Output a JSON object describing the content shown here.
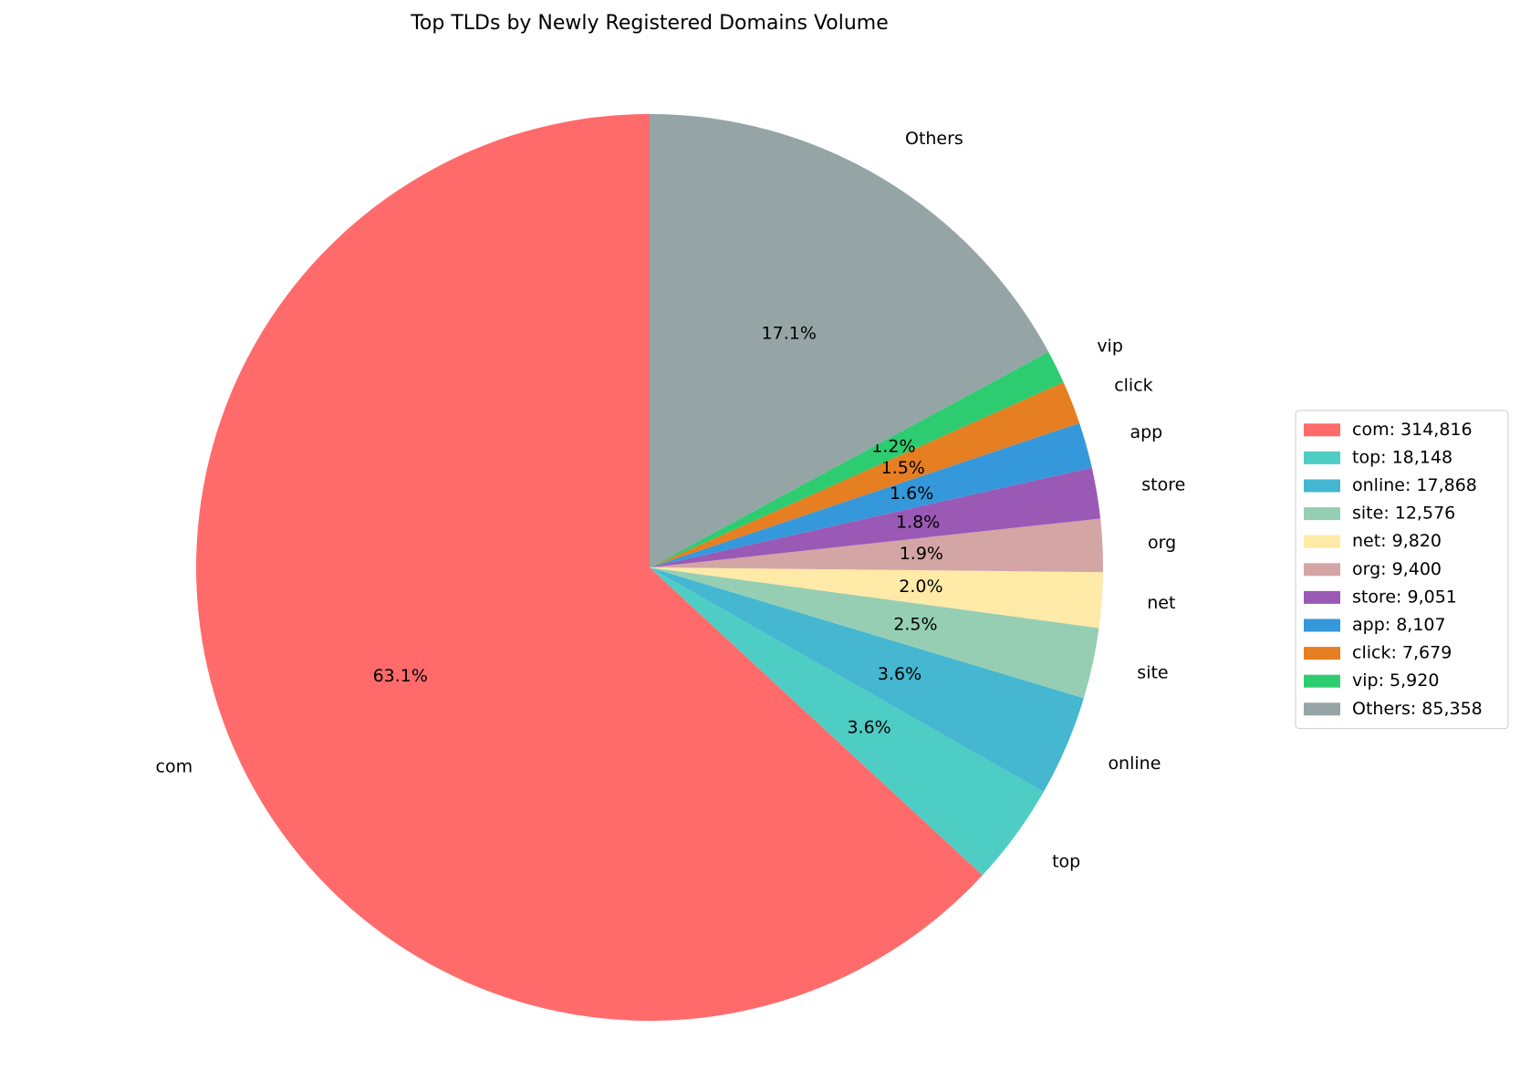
{
  "chart_data": {
    "type": "pie",
    "title": "Top TLDs by Newly Registered Domains Volume",
    "categories": [
      "com",
      "top",
      "online",
      "site",
      "net",
      "org",
      "store",
      "app",
      "click",
      "vip",
      "Others"
    ],
    "values": [
      314816,
      18148,
      17868,
      12576,
      9820,
      9400,
      9051,
      8107,
      7679,
      5920,
      85358
    ],
    "value_labels": [
      "63.1%",
      "3.6%",
      "3.6%",
      "2.5%",
      "2.0%",
      "1.9%",
      "1.8%",
      "1.6%",
      "1.5%",
      "1.2%",
      "17.1%"
    ],
    "legend_labels": [
      "com: 314,816",
      "top: 18,148",
      "online: 17,868",
      "site: 12,576",
      "net: 9,820",
      "org: 9,400",
      "store: 9,051",
      "app: 8,107",
      "click: 7,679",
      "vip: 5,920",
      "Others: 85,358"
    ],
    "colors": [
      "#ff6b6b",
      "#4ecdc4",
      "#45b7d1",
      "#96ceb4",
      "#ffeaa7",
      "#d4a5a5",
      "#9b59b6",
      "#3498db",
      "#e67e22",
      "#2ecc71",
      "#95a5a6"
    ],
    "start_angle": 90,
    "legend": "right"
  }
}
